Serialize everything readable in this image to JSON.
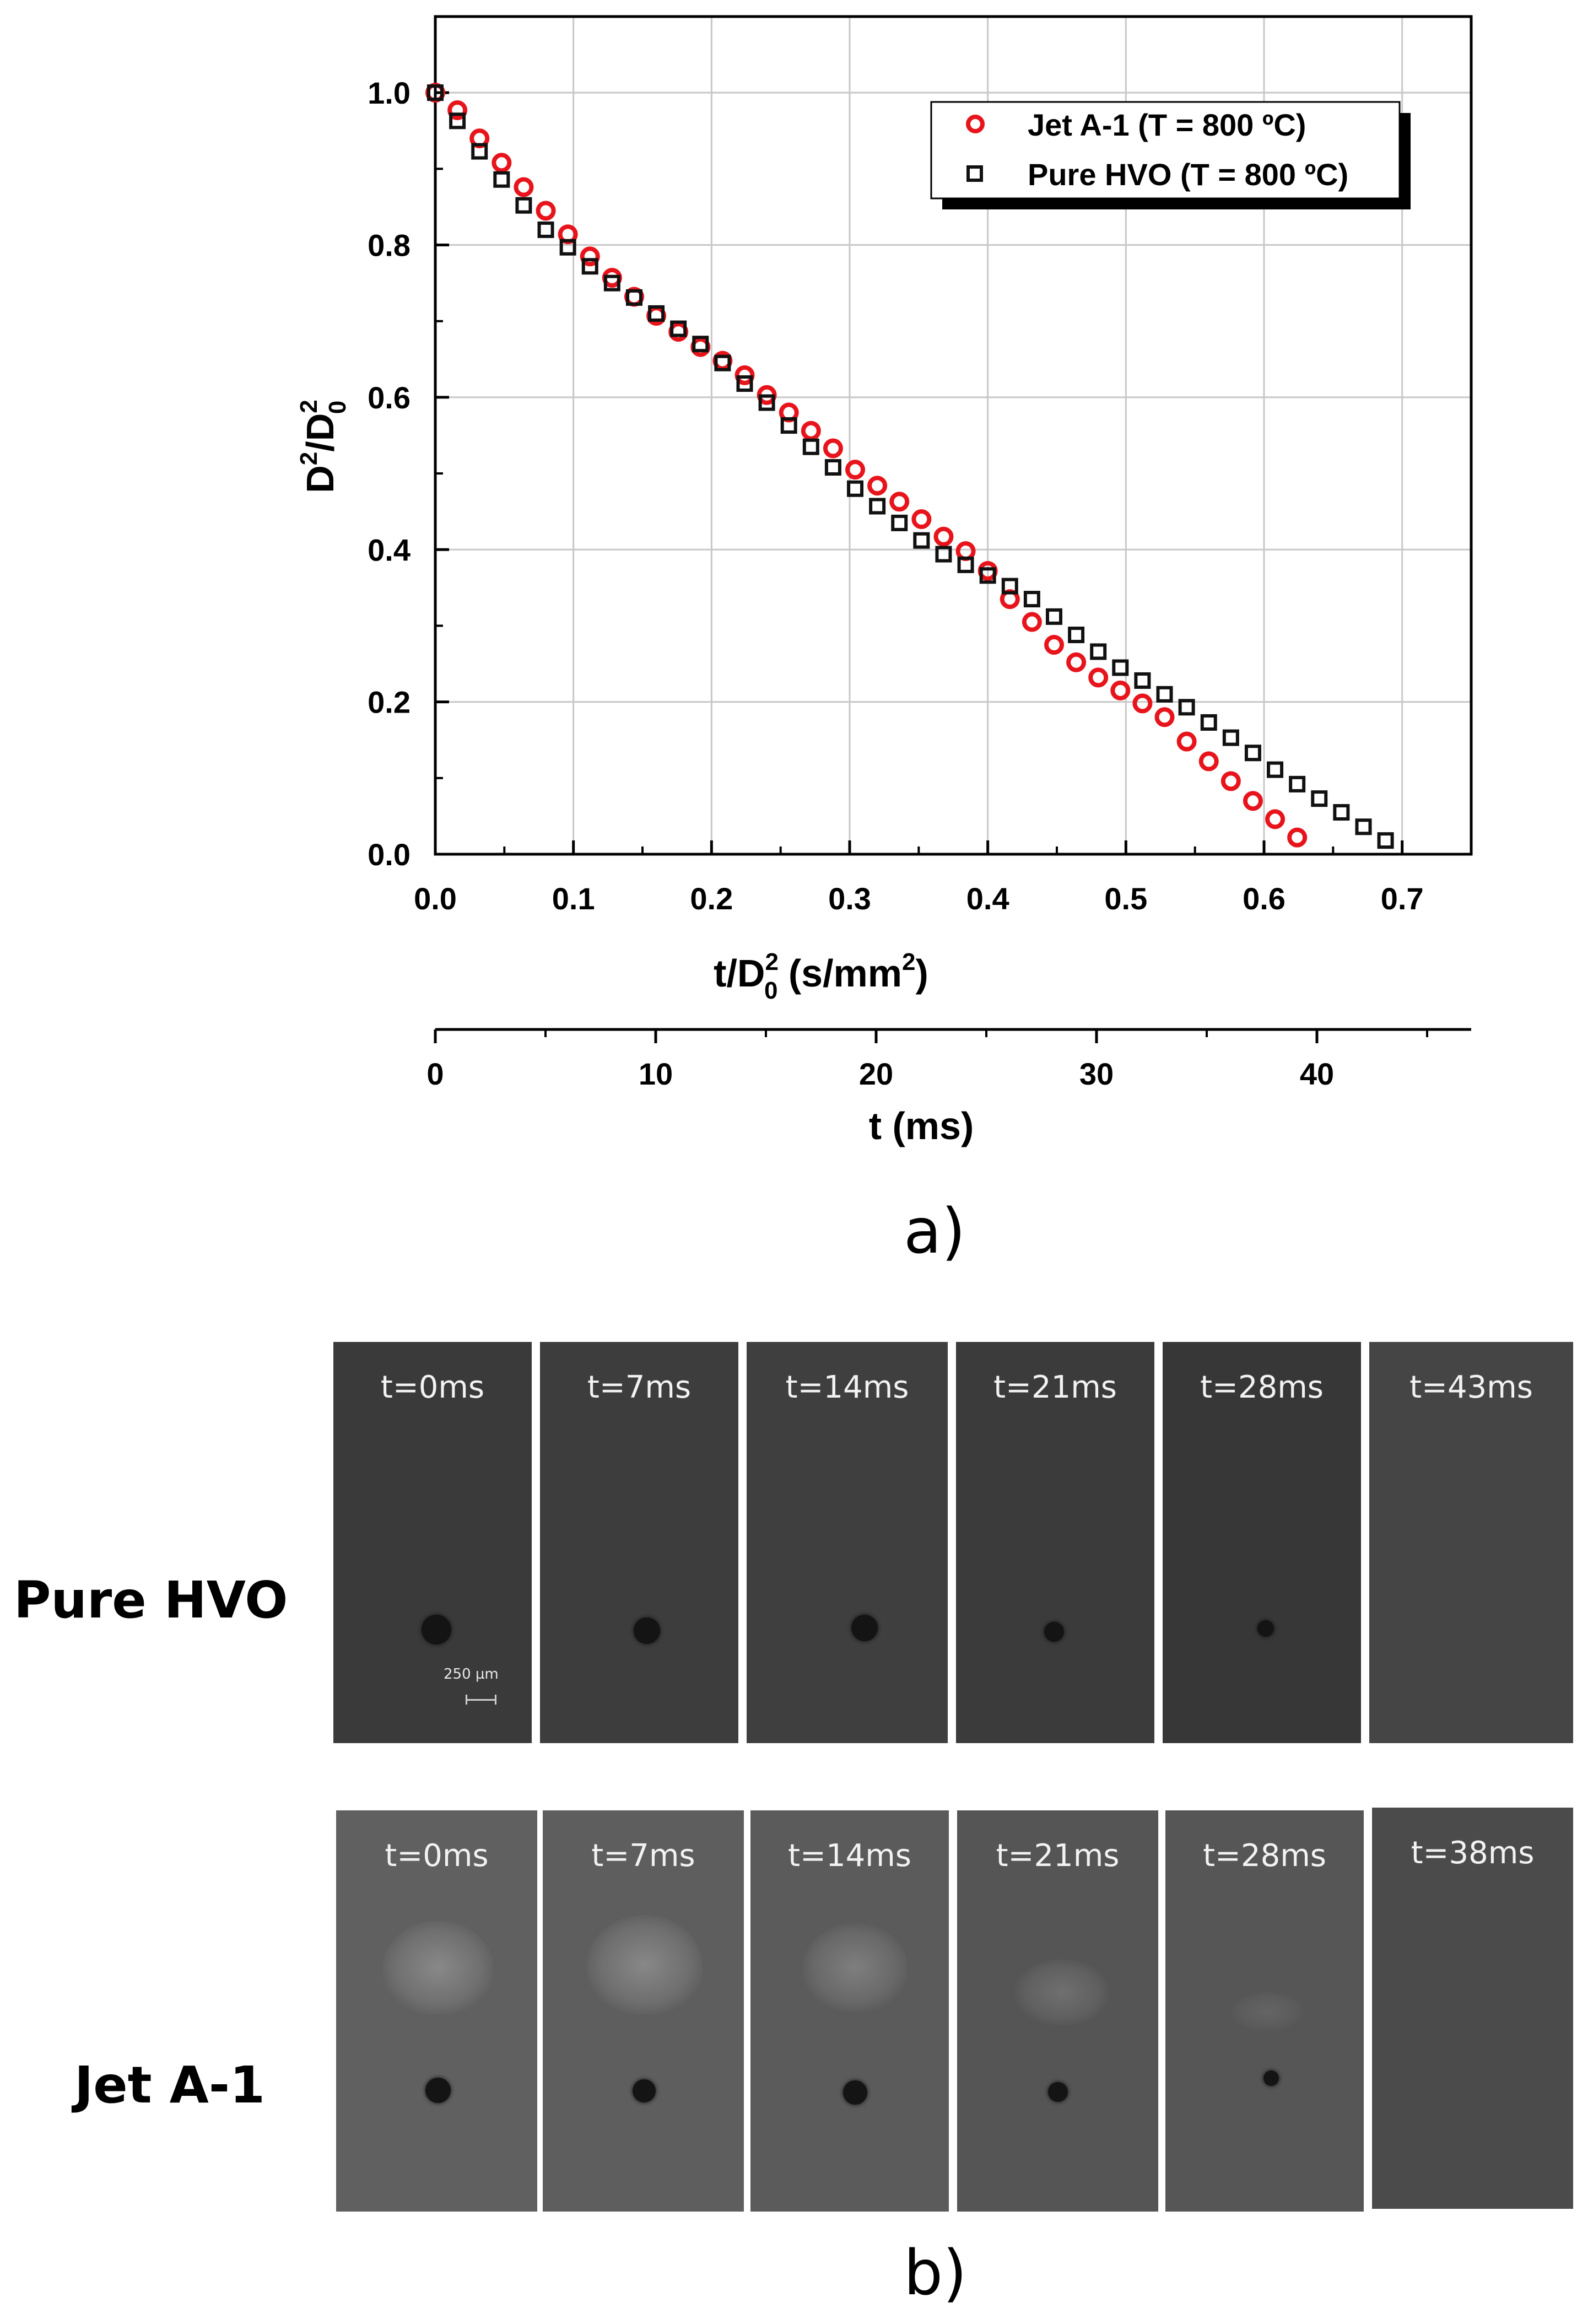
{
  "chart_data": {
    "type": "scatter",
    "xlabel_main": "t/D",
    "xlabel_sup": "2",
    "xlabel_sub": "0",
    "xlabel_tail": " (s/mm",
    "xlabel_tail_sup": "2",
    "xlabel_close": ")",
    "ylabel_main": "D",
    "ylabel_sup1": "2",
    "ylabel_slash": "/D",
    "ylabel_sup2": "2",
    "ylabel_sub": "0",
    "xlim": [
      0.0,
      0.75
    ],
    "ylim": [
      0.0,
      1.1
    ],
    "grid": true,
    "xticks": [
      0.0,
      0.1,
      0.2,
      0.3,
      0.4,
      0.5,
      0.6,
      0.7
    ],
    "xtick_labels": [
      "0.0",
      "0.1",
      "0.2",
      "0.3",
      "0.4",
      "0.5",
      "0.6",
      "0.7"
    ],
    "yticks": [
      0.0,
      0.2,
      0.4,
      0.6,
      0.8,
      1.0
    ],
    "ytick_labels": [
      "0.0",
      "0.2",
      "0.4",
      "0.6",
      "0.8",
      "1.0"
    ],
    "legend_position": "top-right",
    "series": [
      {
        "name": "Jet A-1 (T = 800 ºC)",
        "marker": "circle",
        "color": "#e8141c",
        "x": [
          0.0,
          0.016,
          0.032,
          0.048,
          0.064,
          0.08,
          0.096,
          0.112,
          0.128,
          0.144,
          0.16,
          0.176,
          0.192,
          0.208,
          0.224,
          0.24,
          0.256,
          0.272,
          0.288,
          0.304,
          0.32,
          0.336,
          0.352,
          0.368,
          0.384,
          0.4,
          0.416,
          0.432,
          0.448,
          0.464,
          0.48,
          0.496,
          0.512,
          0.528,
          0.544,
          0.56,
          0.576,
          0.592,
          0.608,
          0.624
        ],
        "y": [
          1.0,
          0.977,
          0.94,
          0.908,
          0.876,
          0.845,
          0.814,
          0.785,
          0.757,
          0.732,
          0.707,
          0.686,
          0.666,
          0.648,
          0.629,
          0.603,
          0.58,
          0.556,
          0.533,
          0.505,
          0.484,
          0.463,
          0.44,
          0.417,
          0.398,
          0.372,
          0.335,
          0.305,
          0.275,
          0.252,
          0.232,
          0.215,
          0.198,
          0.18,
          0.148,
          0.122,
          0.096,
          0.07,
          0.046,
          0.022
        ]
      },
      {
        "name": "Pure HVO (T = 800 ºC)",
        "marker": "square",
        "color": "#111111",
        "x": [
          0.0,
          0.016,
          0.032,
          0.048,
          0.064,
          0.08,
          0.096,
          0.112,
          0.128,
          0.144,
          0.16,
          0.176,
          0.192,
          0.208,
          0.224,
          0.24,
          0.256,
          0.272,
          0.288,
          0.304,
          0.32,
          0.336,
          0.352,
          0.368,
          0.384,
          0.4,
          0.416,
          0.432,
          0.448,
          0.464,
          0.48,
          0.496,
          0.512,
          0.528,
          0.544,
          0.56,
          0.576,
          0.592,
          0.608,
          0.624,
          0.64,
          0.656,
          0.672,
          0.688
        ],
        "y": [
          1.0,
          0.963,
          0.923,
          0.886,
          0.852,
          0.82,
          0.797,
          0.772,
          0.75,
          0.731,
          0.71,
          0.69,
          0.67,
          0.645,
          0.618,
          0.593,
          0.563,
          0.535,
          0.508,
          0.48,
          0.457,
          0.435,
          0.412,
          0.394,
          0.38,
          0.366,
          0.352,
          0.335,
          0.312,
          0.288,
          0.266,
          0.245,
          0.228,
          0.21,
          0.193,
          0.173,
          0.153,
          0.133,
          0.111,
          0.092,
          0.073,
          0.055,
          0.036,
          0.018
        ]
      }
    ],
    "secondary_xaxis": {
      "label": "t (ms)",
      "xlim": [
        0,
        47
      ],
      "ticks": [
        0,
        10,
        20,
        30,
        40
      ],
      "tick_labels": [
        "0",
        "10",
        "20",
        "30",
        "40"
      ]
    }
  },
  "panel_a_label": "a)",
  "panel_b_label": "b)",
  "image_panel": {
    "rows": [
      {
        "label": "Pure HVO",
        "background": "#3f3f3f",
        "frames": [
          {
            "time": "t=0ms",
            "droplet_diameter_um": 120,
            "vapor": false
          },
          {
            "time": "t=7ms",
            "droplet_diameter_um": 110,
            "vapor": false
          },
          {
            "time": "t=14ms",
            "droplet_diameter_um": 108,
            "vapor": false
          },
          {
            "time": "t=21ms",
            "droplet_diameter_um": 80,
            "vapor": false
          },
          {
            "time": "t=28ms",
            "droplet_diameter_um": 65,
            "vapor": false
          },
          {
            "time": "t=43ms",
            "droplet_diameter_um": 0,
            "vapor": false
          }
        ],
        "scale_label": "250 µm"
      },
      {
        "label": "Jet A-1",
        "background": "#5a5a5a",
        "frames": [
          {
            "time": "t=0ms",
            "droplet_diameter_um": 108,
            "vapor": true,
            "vapor_level": 1.0
          },
          {
            "time": "t=7ms",
            "droplet_diameter_um": 98,
            "vapor": true,
            "vapor_level": 1.0
          },
          {
            "time": "t=14ms",
            "droplet_diameter_um": 100,
            "vapor": true,
            "vapor_level": 0.85
          },
          {
            "time": "t=21ms",
            "droplet_diameter_um": 80,
            "vapor": true,
            "vapor_level": 0.55
          },
          {
            "time": "t=28ms",
            "droplet_diameter_um": 58,
            "vapor": true,
            "vapor_level": 0.25
          },
          {
            "time": "t=38ms",
            "droplet_diameter_um": 0,
            "vapor": false,
            "vapor_level": 0
          }
        ]
      }
    ]
  }
}
